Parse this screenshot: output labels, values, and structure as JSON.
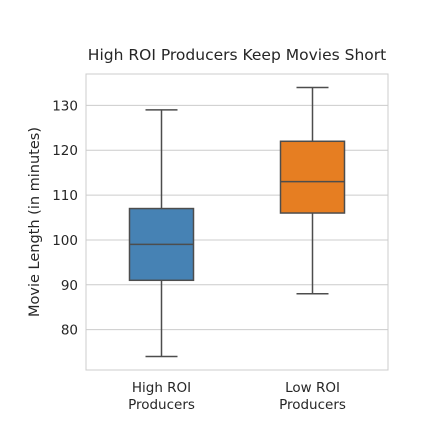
{
  "chart_data": {
    "type": "box",
    "title": "High ROI Producers Keep Movies Short",
    "xlabel": "",
    "ylabel": "Movie Length (in minutes)",
    "ylim": [
      71,
      137
    ],
    "yticks": [
      80,
      90,
      100,
      110,
      120,
      130
    ],
    "grid": true,
    "categories": [
      "High ROI\nProducers",
      "Low ROI\nProducers"
    ],
    "series": [
      {
        "name": "High ROI Producers",
        "whisker_low": 74,
        "q1": 91,
        "median": 99,
        "q3": 107,
        "whisker_high": 129,
        "color": "#4682b4"
      },
      {
        "name": "Low ROI Producers",
        "whisker_low": 88,
        "q1": 106,
        "median": 113,
        "q3": 122,
        "whisker_high": 134,
        "color": "#e67e22"
      }
    ]
  }
}
